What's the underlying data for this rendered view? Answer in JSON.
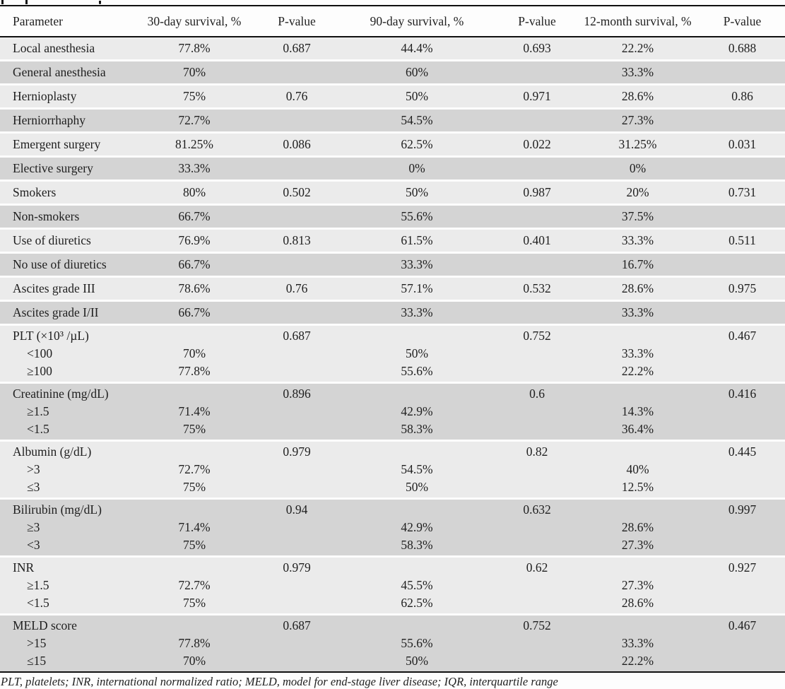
{
  "colors": {
    "row_light": "#ebebeb",
    "row_dark": "#d4d4d4",
    "rule": "#101010",
    "text": "#1f1f1f"
  },
  "table": {
    "columns": [
      "Parameter",
      "30-day survival, %",
      "P-value",
      "90-day survival, %",
      "P-value",
      "12-month survival, %",
      "P-value"
    ],
    "bands": [
      {
        "shade": "light",
        "lines": [
          {
            "param": "Local anesthesia",
            "s30": "77.8%",
            "p30": "0.687",
            "s90": "44.4%",
            "p90": "0.693",
            "s12": "22.2%",
            "p12": "0.688"
          }
        ]
      },
      {
        "shade": "dark",
        "lines": [
          {
            "param": "General anesthesia",
            "s30": "70%",
            "s90": "60%",
            "s12": "33.3%"
          }
        ]
      },
      {
        "shade": "light",
        "lines": [
          {
            "param": "Hernioplasty",
            "s30": "75%",
            "p30": "0.76",
            "s90": "50%",
            "p90": "0.971",
            "s12": "28.6%",
            "p12": "0.86"
          }
        ]
      },
      {
        "shade": "dark",
        "lines": [
          {
            "param": "Herniorrhaphy",
            "s30": "72.7%",
            "s90": "54.5%",
            "s12": "27.3%"
          }
        ]
      },
      {
        "shade": "light",
        "lines": [
          {
            "param": "Emergent surgery",
            "s30": "81.25%",
            "p30": "0.086",
            "s90": "62.5%",
            "p90": "0.022",
            "s12": "31.25%",
            "p12": "0.031"
          }
        ]
      },
      {
        "shade": "dark",
        "lines": [
          {
            "param": "Elective surgery",
            "s30": "33.3%",
            "s90": "0%",
            "s12": "0%"
          }
        ]
      },
      {
        "shade": "light",
        "lines": [
          {
            "param": "Smokers",
            "s30": "80%",
            "p30": "0.502",
            "s90": "50%",
            "p90": "0.987",
            "s12": "20%",
            "p12": "0.731"
          }
        ]
      },
      {
        "shade": "dark",
        "lines": [
          {
            "param": "Non-smokers",
            "s30": "66.7%",
            "s90": "55.6%",
            "s12": "37.5%"
          }
        ]
      },
      {
        "shade": "light",
        "lines": [
          {
            "param": "Use of diuretics",
            "s30": "76.9%",
            "p30": "0.813",
            "s90": "61.5%",
            "p90": "0.401",
            "s12": "33.3%",
            "p12": "0.511"
          }
        ]
      },
      {
        "shade": "dark",
        "lines": [
          {
            "param": "No use of diuretics",
            "s30": "66.7%",
            "s90": "33.3%",
            "s12": "16.7%"
          }
        ]
      },
      {
        "shade": "light",
        "lines": [
          {
            "param": "Ascites grade III",
            "s30": "78.6%",
            "p30": "0.76",
            "s90": "57.1%",
            "p90": "0.532",
            "s12": "28.6%",
            "p12": "0.975"
          }
        ]
      },
      {
        "shade": "dark",
        "lines": [
          {
            "param": "Ascites grade I/II",
            "s30": "66.7%",
            "s90": "33.3%",
            "s12": "33.3%"
          }
        ]
      },
      {
        "shade": "light",
        "lines": [
          {
            "param": "PLT (×10³ /µL)",
            "p30": "0.687",
            "p90": "0.752",
            "p12": "0.467"
          },
          {
            "param": "<100",
            "indent": true,
            "s30": "70%",
            "s90": "50%",
            "s12": "33.3%"
          },
          {
            "param": "≥100",
            "indent": true,
            "s30": "77.8%",
            "s90": "55.6%",
            "s12": "22.2%"
          }
        ]
      },
      {
        "shade": "dark",
        "lines": [
          {
            "param": "Creatinine (mg/dL)",
            "p30": "0.896",
            "p90": "0.6",
            "p12": "0.416"
          },
          {
            "param": "≥1.5",
            "indent": true,
            "s30": "71.4%",
            "s90": "42.9%",
            "s12": "14.3%"
          },
          {
            "param": "<1.5",
            "indent": true,
            "s30": "75%",
            "s90": "58.3%",
            "s12": "36.4%"
          }
        ]
      },
      {
        "shade": "light",
        "lines": [
          {
            "param": "Albumin (g/dL)",
            "p30": "0.979",
            "p90": "0.82",
            "p12": "0.445"
          },
          {
            "param": ">3",
            "indent": true,
            "s30": "72.7%",
            "s90": "54.5%",
            "s12": "40%"
          },
          {
            "param": "≤3",
            "indent": true,
            "s30": "75%",
            "s90": "50%",
            "s12": "12.5%"
          }
        ]
      },
      {
        "shade": "dark",
        "lines": [
          {
            "param": "Bilirubin (mg/dL)",
            "p30": "0.94",
            "p90": "0.632",
            "p12": "0.997"
          },
          {
            "param": "≥3",
            "indent": true,
            "s30": "71.4%",
            "s90": "42.9%",
            "s12": "28.6%"
          },
          {
            "param": "<3",
            "indent": true,
            "s30": "75%",
            "s90": "58.3%",
            "s12": "27.3%"
          }
        ]
      },
      {
        "shade": "light",
        "lines": [
          {
            "param": "INR",
            "p30": "0.979",
            "p90": "0.62",
            "p12": "0.927"
          },
          {
            "param": "≥1.5",
            "indent": true,
            "s30": "72.7%",
            "s90": "45.5%",
            "s12": "27.3%"
          },
          {
            "param": "<1.5",
            "indent": true,
            "s30": "75%",
            "s90": "62.5%",
            "s12": "28.6%"
          }
        ]
      },
      {
        "shade": "dark",
        "lines": [
          {
            "param": "MELD score",
            "p30": "0.687",
            "p90": "0.752",
            "p12": "0.467"
          },
          {
            "param": ">15",
            "indent": true,
            "s30": "77.8%",
            "s90": "55.6%",
            "s12": "33.3%"
          },
          {
            "param": "≤15",
            "indent": true,
            "s30": "70%",
            "s90": "50%",
            "s12": "22.2%"
          }
        ]
      }
    ],
    "footnote": "PLT, platelets; INR, international normalized ratio; MELD, model for end-stage liver disease; IQR, interquartile range"
  }
}
